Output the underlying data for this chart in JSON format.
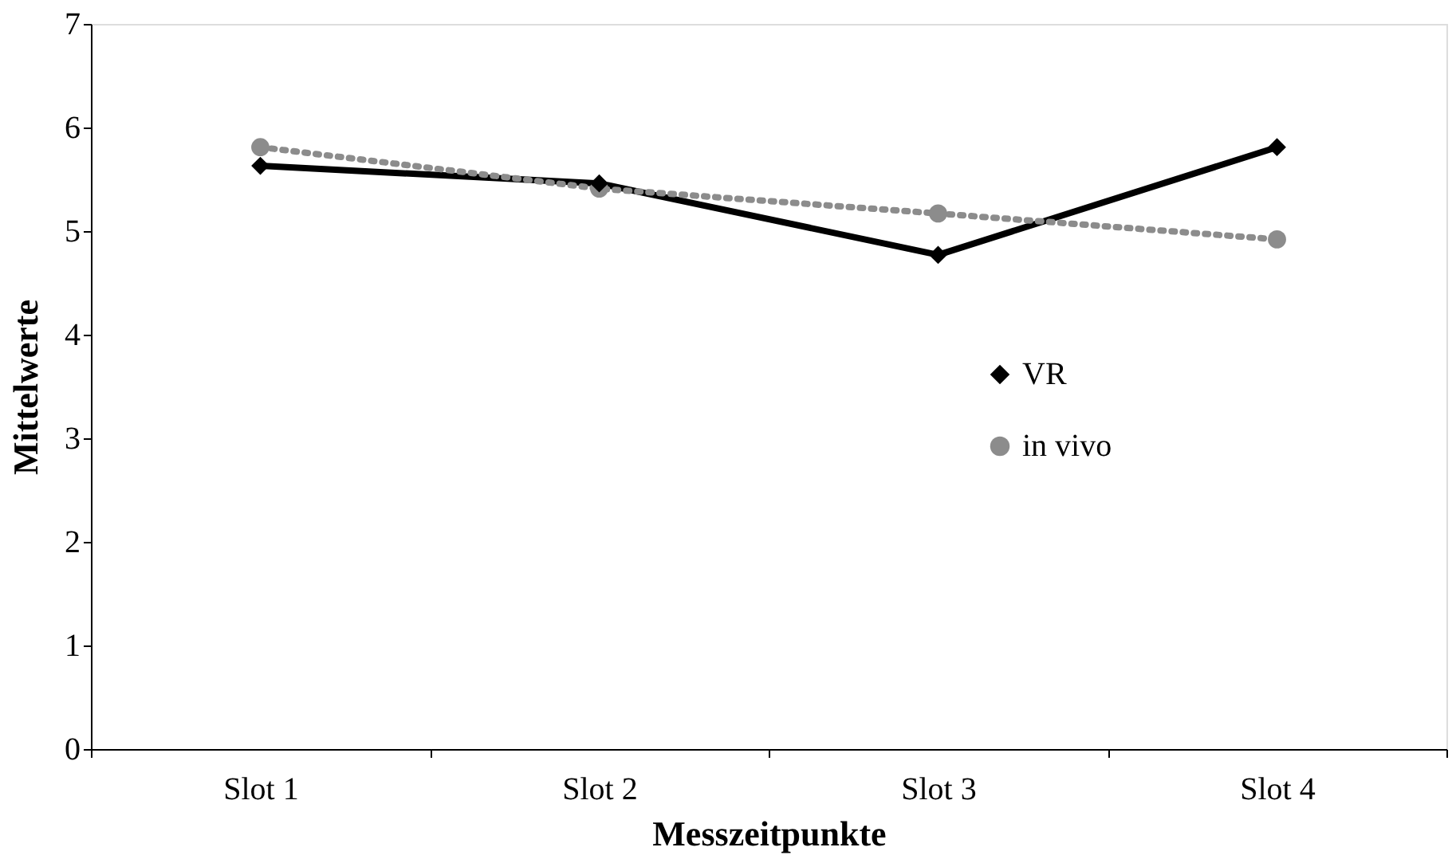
{
  "chart_data": {
    "type": "line",
    "xlabel": "Messzeitpunkte",
    "ylabel": "Mittelwerte",
    "categories": [
      "Slot 1",
      "Slot 2",
      "Slot 3",
      "Slot 4"
    ],
    "series": [
      {
        "name": "VR",
        "color": "#000000",
        "values": [
          5.63,
          5.46,
          4.77,
          5.81
        ],
        "marker": "diamond",
        "line_style": "solid"
      },
      {
        "name": "in vivo",
        "color": "#8c8c8c",
        "values": [
          5.81,
          5.41,
          5.17,
          4.92
        ],
        "marker": "circle",
        "line_style": "dotted"
      }
    ],
    "ylim": [
      0,
      7
    ],
    "yticks": [
      0,
      1,
      2,
      3,
      4,
      5,
      6,
      7
    ],
    "grid": false,
    "legend": "right"
  }
}
